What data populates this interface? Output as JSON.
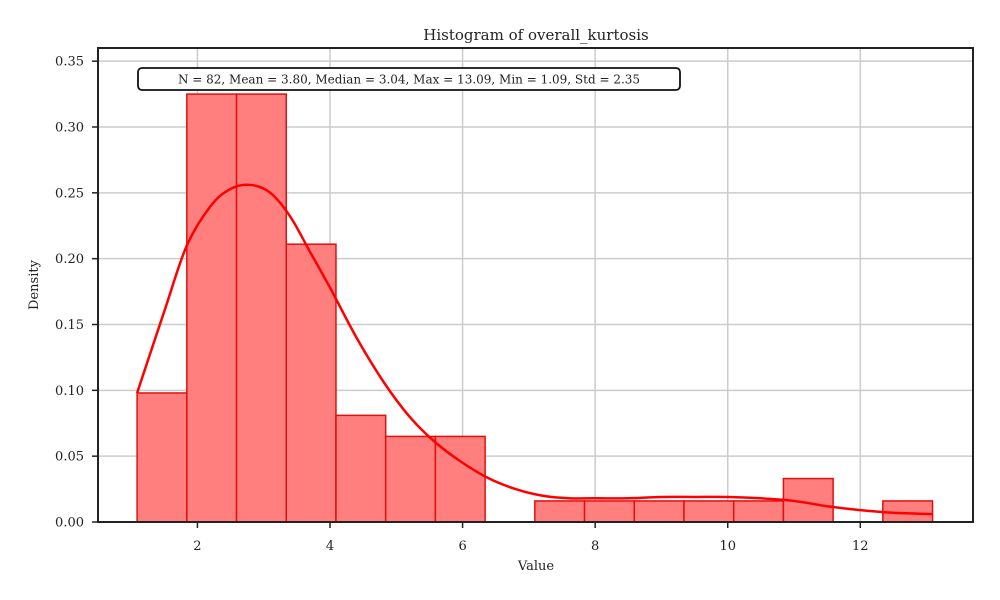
{
  "chart_data": {
    "type": "bar",
    "title": "Histogram of overall_kurtosis",
    "xlabel": "Value",
    "ylabel": "Density",
    "stats_text": "N = 82, Mean = 3.80, Median = 3.04, Max = 13.09, Min = 1.09, Std = 2.35",
    "xlim": [
      0.5,
      13.7
    ],
    "ylim": [
      0,
      0.36
    ],
    "x_ticks": [
      2,
      4,
      6,
      8,
      10,
      12
    ],
    "y_ticks": [
      0.0,
      0.05,
      0.1,
      0.15,
      0.2,
      0.25,
      0.3,
      0.35
    ],
    "x_tick_labels": [
      "2",
      "4",
      "6",
      "8",
      "10",
      "12"
    ],
    "y_tick_labels": [
      "0.00",
      "0.05",
      "0.10",
      "0.15",
      "0.20",
      "0.25",
      "0.30",
      "0.35"
    ],
    "bin_edges": [
      1.09,
      1.84,
      2.59,
      3.34,
      4.09,
      4.84,
      5.59,
      6.34,
      7.09,
      7.84,
      8.59,
      9.34,
      10.09,
      10.84,
      11.59,
      12.34,
      13.09
    ],
    "densities": [
      0.098,
      0.325,
      0.325,
      0.211,
      0.081,
      0.065,
      0.065,
      0.0,
      0.016,
      0.016,
      0.016,
      0.016,
      0.016,
      0.033,
      0.0,
      0.016
    ],
    "kde": {
      "x": [
        1.09,
        1.5,
        1.84,
        2.2,
        2.5,
        2.8,
        3.1,
        3.4,
        3.7,
        4.0,
        4.4,
        4.8,
        5.2,
        5.6,
        6.0,
        6.4,
        6.8,
        7.2,
        7.6,
        8.0,
        8.5,
        9.0,
        9.5,
        10.0,
        10.5,
        11.0,
        11.5,
        12.0,
        12.5,
        13.09
      ],
      "y": [
        0.098,
        0.16,
        0.21,
        0.24,
        0.253,
        0.256,
        0.25,
        0.232,
        0.205,
        0.178,
        0.14,
        0.107,
        0.08,
        0.06,
        0.045,
        0.033,
        0.025,
        0.02,
        0.018,
        0.018,
        0.018,
        0.019,
        0.019,
        0.019,
        0.018,
        0.016,
        0.012,
        0.009,
        0.007,
        0.006
      ]
    },
    "grid": true,
    "colors": {
      "bar_fill": "#ff7f7f",
      "bar_edge": "#e01010",
      "kde_line": "#ff0000"
    }
  }
}
